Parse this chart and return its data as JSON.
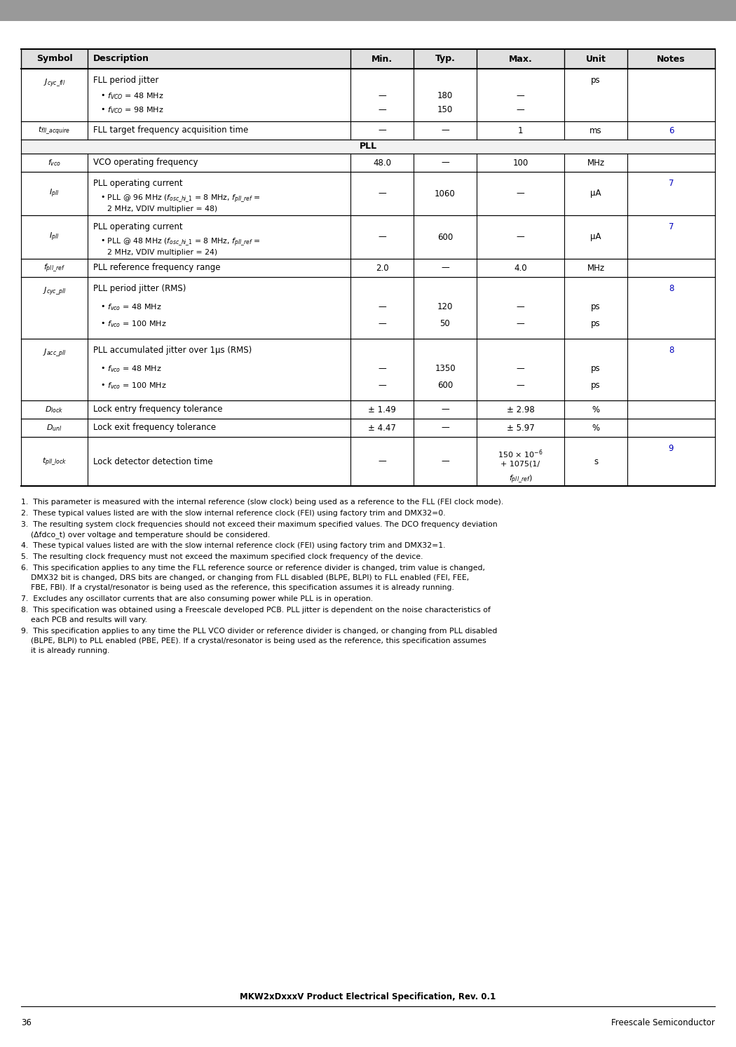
{
  "title": "MKW2xDxxxV Product Electrical Specification, Rev. 0.1",
  "page_num": "36",
  "company": "Freescale Semiconductor",
  "col_headers": [
    "Symbol",
    "Description",
    "Min.",
    "Typ.",
    "Max.",
    "Unit",
    "Notes"
  ],
  "notes_color": "#0000bb",
  "banner_color": "#999999",
  "header_bg": "#e0e0e0",
  "section_bg": "#f2f2f2",
  "table_border_color": "#000000",
  "footnotes": [
    "1.  This parameter is measured with the internal reference (slow clock) being used as a reference to the FLL (FEI clock mode).",
    "2.  These typical values listed are with the slow internal reference clock (FEI) using factory trim and DMX32=0.",
    "3.  The resulting system clock frequencies should not exceed their maximum specified values. The DCO frequency deviation\n    (Δfdco_t) over voltage and temperature should be considered.",
    "4.  These typical values listed are with the slow internal reference clock (FEI) using factory trim and DMX32=1.",
    "5.  The resulting clock frequency must not exceed the maximum specified clock frequency of the device.",
    "6.  This specification applies to any time the FLL reference source or reference divider is changed, trim value is changed,\n    DMX32 bit is changed, DRS bits are changed, or changing from FLL disabled (BLPE, BLPI) to FLL enabled (FEI, FEE,\n    FBE, FBI). If a crystal/resonator is being used as the reference, this specification assumes it is already running.",
    "7.  Excludes any oscillator currents that are also consuming power while PLL is in operation.",
    "8.  This specification was obtained using a Freescale developed PCB. PLL jitter is dependent on the noise characteristics of\n    each PCB and results will vary.",
    "9.  This specification applies to any time the PLL VCO divider or reference divider is changed, or changing from PLL disabled\n    (BLPE, BLPI) to PLL enabled (PBE, PEE). If a crystal/resonator is being used as the reference, this specification assumes\n    it is already running."
  ]
}
